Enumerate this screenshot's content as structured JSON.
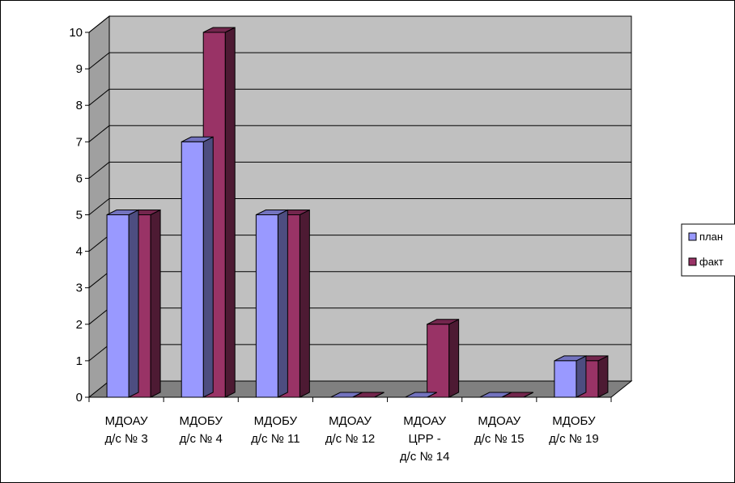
{
  "chart_data": {
    "type": "bar",
    "title": "",
    "xlabel": "",
    "ylabel": "",
    "ylim": [
      0,
      10
    ],
    "yticks": [
      "0",
      "1",
      "2",
      "3",
      "4",
      "5",
      "6",
      "7",
      "8",
      "9",
      "10"
    ],
    "categories": [
      [
        "МДОАУ",
        "д/с № 3"
      ],
      [
        "МДОБУ",
        "д/с № 4"
      ],
      [
        "МДОБУ",
        "д/с № 11"
      ],
      [
        "МДОАУ",
        "д/с № 12"
      ],
      [
        "МДОАУ",
        "ЦРР -",
        "д/с № 14"
      ],
      [
        "МДОАУ",
        "д/с № 15"
      ],
      [
        "МДОБУ",
        "д/с № 19"
      ]
    ],
    "series": [
      {
        "name": "план",
        "values": [
          5,
          7,
          5,
          0,
          0,
          0,
          1
        ],
        "color": "#9999ff"
      },
      {
        "name": "факт",
        "values": [
          5,
          10,
          5,
          0,
          2,
          0,
          1
        ],
        "color": "#993366"
      }
    ],
    "grid": true,
    "legend": "right",
    "wall_color": "#c0c0c0",
    "floor_color": "#808080"
  }
}
